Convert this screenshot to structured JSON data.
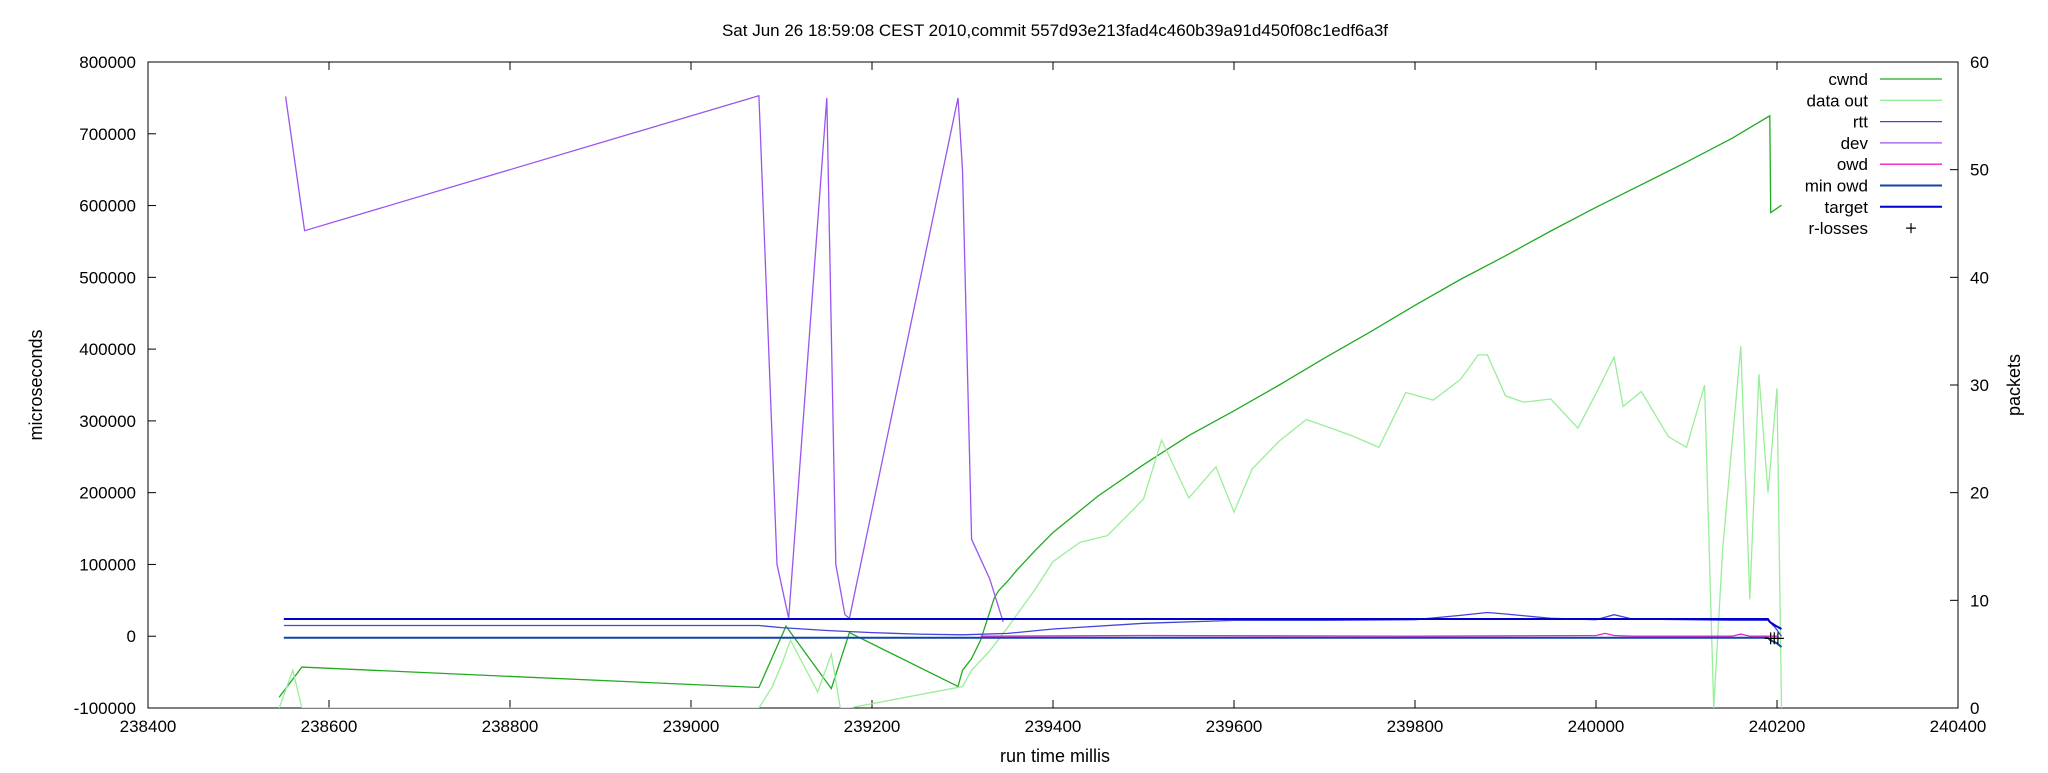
{
  "chart_data": {
    "type": "line",
    "title": "Sat Jun 26 18:59:08 CEST 2010,commit 557d93e213fad4c460b39a91d450f08c1edf6a3f",
    "xlabel": "run time millis",
    "ylabel": "microseconds",
    "y2label": "packets",
    "xlim": [
      238400,
      240400
    ],
    "ylim": [
      -100000,
      800000
    ],
    "y2lim": [
      0,
      60
    ],
    "xticks": [
      238400,
      238600,
      238800,
      239000,
      239200,
      239400,
      239600,
      239800,
      240000,
      240200,
      240400
    ],
    "yticks": [
      -100000,
      0,
      100000,
      200000,
      300000,
      400000,
      500000,
      600000,
      700000,
      800000
    ],
    "y2ticks": [
      0,
      10,
      20,
      30,
      40,
      50,
      60
    ],
    "grid": false,
    "legend_position": "top-right",
    "series": [
      {
        "name": "cwnd",
        "axis": "y2",
        "color": "#22aa22",
        "x": [
          238545,
          238552,
          238570,
          239075,
          239105,
          239155,
          239175,
          239295,
          239300,
          239310,
          239320,
          239335,
          239340,
          239350,
          239360,
          239380,
          239400,
          239450,
          239500,
          239550,
          239600,
          239650,
          239700,
          239750,
          239800,
          239850,
          239900,
          239950,
          240000,
          240050,
          240100,
          240150,
          240192,
          240193,
          240205
        ],
        "y": [
          1,
          1.8,
          3.8,
          1.9,
          7.6,
          1.8,
          7.0,
          2.0,
          3.5,
          4.6,
          6.3,
          10.2,
          10.9,
          11.8,
          12.8,
          14.6,
          16.3,
          19.7,
          22.6,
          25.3,
          27.6,
          30.0,
          32.5,
          34.9,
          37.4,
          39.8,
          42.0,
          44.3,
          46.5,
          48.6,
          50.7,
          52.9,
          55.0,
          46.0,
          46.7
        ]
      },
      {
        "name": "data out",
        "axis": "y2",
        "color": "#99ee99",
        "x": [
          238545,
          238560,
          238570,
          239075,
          239090,
          239100,
          239110,
          239140,
          239155,
          239165,
          239175,
          239300,
          239310,
          239330,
          239350,
          239380,
          239400,
          239430,
          239460,
          239500,
          239520,
          239550,
          239580,
          239600,
          239620,
          239650,
          239680,
          239700,
          239730,
          239760,
          239790,
          239820,
          239850,
          239870,
          239880,
          239900,
          239920,
          239950,
          239980,
          240000,
          240020,
          240030,
          240050,
          240080,
          240100,
          240120,
          240130,
          240140,
          240160,
          240170,
          240180,
          240190,
          240200,
          240205
        ],
        "y": [
          0,
          3.5,
          0,
          0,
          2,
          4,
          6.3,
          1.5,
          5,
          0,
          0,
          2,
          3.5,
          5.3,
          7.5,
          11,
          13.6,
          15.4,
          16.0,
          19.4,
          24.9,
          19.5,
          22.4,
          18.2,
          22.2,
          24.8,
          26.8,
          26.2,
          25.3,
          24.2,
          29.3,
          28.6,
          30.5,
          32.8,
          32.8,
          29.0,
          28.4,
          28.7,
          26.0,
          29.2,
          32.6,
          28.0,
          29.4,
          25.2,
          24.2,
          30.0,
          0,
          14.8,
          33.6,
          10.1,
          31.0,
          20.0,
          29.7,
          0
        ]
      },
      {
        "name": "rtt",
        "axis": "y",
        "color": "#4444dd",
        "x": [
          238550,
          239075,
          239100,
          239150,
          239200,
          239250,
          239300,
          239350,
          239400,
          239500,
          239600,
          239700,
          239800,
          239850,
          239880,
          239900,
          239950,
          240000,
          240020,
          240040,
          240100,
          240150,
          240190,
          240198,
          240205
        ],
        "y": [
          15000,
          15000,
          12000,
          8000,
          5000,
          3000,
          2000,
          4000,
          10000,
          18000,
          22000,
          22000,
          23000,
          29000,
          33000,
          31000,
          25000,
          23000,
          30000,
          24000,
          23000,
          22000,
          22000,
          12000,
          0
        ]
      },
      {
        "name": "dev",
        "axis": "y",
        "color": "#9955ee",
        "x": [
          238552,
          238573,
          239075,
          239095,
          239108,
          239150,
          239160,
          239170,
          239175,
          239295,
          239300,
          239310,
          239330,
          239345
        ],
        "y": [
          752000,
          565000,
          753000,
          100000,
          25000,
          750000,
          100000,
          30000,
          25000,
          750000,
          650000,
          135000,
          80000,
          20000
        ]
      },
      {
        "name": "owd",
        "axis": "y",
        "color": "#ee22cc",
        "x": [
          239320,
          239500,
          239800,
          240000,
          240010,
          240020,
          240040,
          240150,
          240160,
          240170,
          240200
        ],
        "y": [
          0,
          1000,
          0,
          1000,
          4000,
          1000,
          0,
          0,
          3000,
          0,
          0
        ]
      },
      {
        "name": "min owd",
        "axis": "y",
        "color": "#1144aa",
        "x": [
          238550,
          240190,
          240192,
          240200,
          240205
        ],
        "y": [
          -2000,
          -2000,
          -5000,
          -10000,
          -15000
        ]
      },
      {
        "name": "target",
        "axis": "y",
        "color": "#0000cc",
        "x": [
          238550,
          240190,
          240192,
          240198,
          240205
        ],
        "y": [
          24000,
          24000,
          20000,
          15000,
          10000
        ]
      },
      {
        "name": "r-losses",
        "axis": "y",
        "color": "#000000",
        "marker": "+",
        "x": [
          240193,
          240197,
          240201
        ],
        "y": [
          -3000,
          -3000,
          -3000
        ]
      }
    ]
  }
}
